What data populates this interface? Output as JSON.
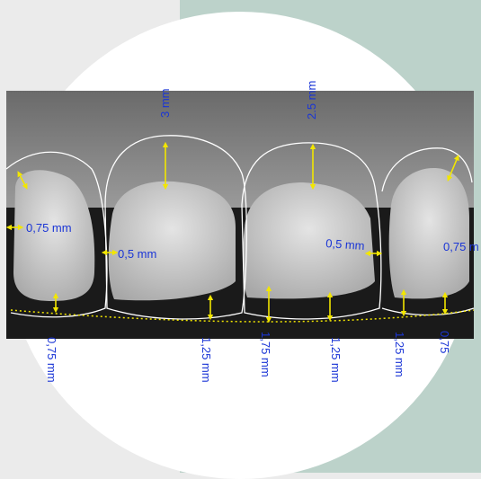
{
  "image": {
    "description_icon": "dental-smile-design-icon",
    "colors": {
      "left_background": "#ebebeb",
      "right_background": "#bcd2ca",
      "label_color": "#1a35d6",
      "arrow_color": "#f2e600",
      "outline_color": "#ffffff"
    }
  },
  "labels": {
    "top_left_height": "3 mm",
    "top_right_height": "2.5 mm",
    "left_incisor_side": "0,75 mm",
    "central_left_side": "0,5 mm",
    "central_right_side": "0,5 mm",
    "right_incisor_side": "0,75 m",
    "bottom_1": "0,75 mm",
    "bottom_2": "1,25 mm",
    "bottom_3": "1,75 mm",
    "bottom_4": "1,25 mm",
    "bottom_5": "1,25 mm",
    "bottom_6": "0,75"
  }
}
